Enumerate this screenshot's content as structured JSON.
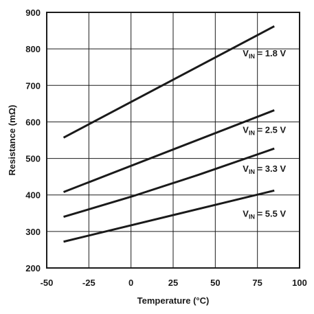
{
  "chart_data": {
    "type": "line",
    "title": "",
    "xlabel": "Temperature (°C)",
    "ylabel": "Resistance (mΩ)",
    "xlim": [
      -50,
      100
    ],
    "ylim": [
      200,
      900
    ],
    "xticks": [
      -50,
      -25,
      0,
      25,
      50,
      75,
      100
    ],
    "yticks": [
      200,
      300,
      400,
      500,
      600,
      700,
      800,
      900
    ],
    "grid": true,
    "legend": "inline labels",
    "series": [
      {
        "name": "V_IN = 1.8 V",
        "label_main": "V",
        "label_sub": "IN",
        "label_rest": " = 1.8 V",
        "x": [
          -40,
          85
        ],
        "y": [
          557,
          862
        ],
        "label_at": [
          72,
          780
        ]
      },
      {
        "name": "V_IN = 2.5 V",
        "label_main": "V",
        "label_sub": "IN",
        "label_rest": " = 2.5 V",
        "x": [
          -40,
          85
        ],
        "y": [
          408,
          632
        ],
        "label_at": [
          72,
          570
        ]
      },
      {
        "name": "V_IN = 3.3 V",
        "label_main": "V",
        "label_sub": "IN",
        "label_rest": " = 3.3 V",
        "x": [
          -40,
          0,
          40,
          85
        ],
        "y": [
          340,
          395,
          455,
          527
        ],
        "label_at": [
          72,
          463
        ]
      },
      {
        "name": "V_IN = 5.5 V",
        "label_main": "V",
        "label_sub": "IN",
        "label_rest": " = 5.5 V",
        "x": [
          -40,
          85
        ],
        "y": [
          272,
          412
        ],
        "label_at": [
          72,
          340
        ]
      }
    ],
    "line_color": "#1a1a1a"
  }
}
